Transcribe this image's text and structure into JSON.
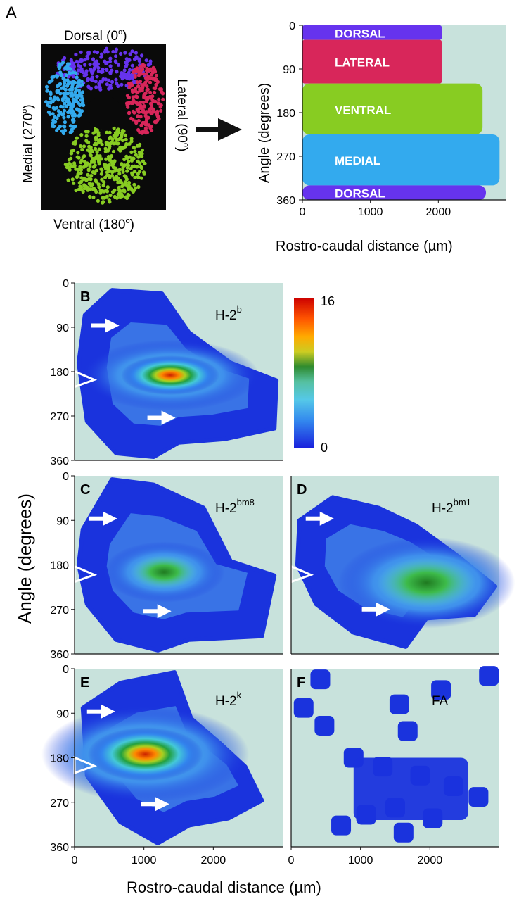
{
  "panel_a": {
    "letter": "A",
    "schematic": {
      "top_label": "Dorsal (0",
      "top_sup": "o",
      "top_end": ")",
      "bottom_label": "Ventral (180",
      "bottom_sup": "o",
      "bottom_end": ")",
      "left_label": "Medial (270",
      "left_sup": "o",
      "left_end": ")",
      "right_label": "Lateral (90",
      "right_sup": "o",
      "right_end": ")"
    },
    "chart": {
      "band_labels": [
        "DORSAL",
        "LATERAL",
        "VENTRAL",
        "MEDIAL",
        "DORSAL"
      ],
      "ylabel": "Angle (degrees)",
      "xlabel": "Rostro-caudal distance (µm)",
      "yticks": [
        "0",
        "90",
        "180",
        "270",
        "360"
      ],
      "xticks": [
        "0",
        "1000",
        "2000"
      ]
    }
  },
  "heatmaps": {
    "ylabel": "Angle (degrees)",
    "xlabel": "Rostro-caudal distance (µm)",
    "yticks": [
      "0",
      "90",
      "180",
      "270",
      "360"
    ],
    "xticks": [
      "0",
      "1000",
      "2000"
    ],
    "colorbar": {
      "max_label": "16",
      "min_label": "0"
    },
    "panels": [
      {
        "letter": "B",
        "strain": "H-2",
        "sup": "b"
      },
      {
        "letter": "C",
        "strain": "H-2",
        "sup": "bm8"
      },
      {
        "letter": "D",
        "strain": "H-2",
        "sup": "bm1"
      },
      {
        "letter": "E",
        "strain": "H-2",
        "sup": "k"
      },
      {
        "letter": "F",
        "strain": "FA",
        "sup": ""
      }
    ]
  },
  "chart_data": [
    {
      "type": "area",
      "title": "",
      "xlabel": "Rostro-caudal distance (µm)",
      "ylabel": "Angle (degrees)",
      "xlim": [
        0,
        3000
      ],
      "ylim": [
        0,
        360
      ],
      "y_inverted": true,
      "series": [
        {
          "name": "DORSAL",
          "y_range": [
            0,
            30
          ],
          "x_extent": 2050,
          "color": "#6633ee"
        },
        {
          "name": "LATERAL",
          "y_range": [
            30,
            120
          ],
          "x_extent": 2050,
          "color": "#d8265a"
        },
        {
          "name": "VENTRAL",
          "y_range": [
            120,
            225
          ],
          "x_extent": 2650,
          "color": "#88cc22"
        },
        {
          "name": "MEDIAL",
          "y_range": [
            225,
            330
          ],
          "x_extent": 2900,
          "color": "#33aaee"
        },
        {
          "name": "DORSAL",
          "y_range": [
            330,
            360
          ],
          "x_extent": 2700,
          "color": "#6633ee"
        }
      ]
    },
    {
      "type": "heatmap",
      "title": "H-2b",
      "xlabel": "Rostro-caudal distance (µm)",
      "ylabel": "Angle (degrees)",
      "xlim": [
        0,
        3000
      ],
      "ylim": [
        0,
        360
      ],
      "zlim": [
        0,
        16
      ],
      "peaks": [
        {
          "x": 1400,
          "y": 205,
          "value": 12
        }
      ]
    },
    {
      "type": "heatmap",
      "title": "H-2bm8",
      "xlabel": "Rostro-caudal distance (µm)",
      "ylabel": "Angle (degrees)",
      "xlim": [
        0,
        3000
      ],
      "ylim": [
        0,
        360
      ],
      "zlim": [
        0,
        16
      ],
      "peaks": [
        {
          "x": 1450,
          "y": 215,
          "value": 9
        }
      ]
    },
    {
      "type": "heatmap",
      "title": "H-2bm1",
      "xlabel": "Rostro-caudal distance (µm)",
      "ylabel": "Angle (degrees)",
      "xlim": [
        0,
        3000
      ],
      "ylim": [
        0,
        360
      ],
      "zlim": [
        0,
        16
      ],
      "peaks": [
        {
          "x": 2000,
          "y": 240,
          "value": 6
        }
      ]
    },
    {
      "type": "heatmap",
      "title": "H-2k",
      "xlabel": "Rostro-caudal distance (µm)",
      "ylabel": "Angle (degrees)",
      "xlim": [
        0,
        3000
      ],
      "ylim": [
        0,
        360
      ],
      "zlim": [
        0,
        16
      ],
      "peaks": [
        {
          "x": 1050,
          "y": 180,
          "value": 16
        }
      ]
    },
    {
      "type": "heatmap",
      "title": "FA",
      "xlabel": "Rostro-caudal distance (µm)",
      "ylabel": "Angle (degrees)",
      "xlim": [
        0,
        3000
      ],
      "ylim": [
        0,
        360
      ],
      "zlim": [
        0,
        16
      ],
      "peaks": [
        {
          "x": 1500,
          "y": 220,
          "value": 2
        }
      ]
    }
  ],
  "colors": {
    "dorsal": "#6633ee",
    "lateral": "#d8265a",
    "ventral": "#88cc22",
    "medial": "#33aaee",
    "plot_bg": "#c8e2dc",
    "heat_low": "#1a33dd"
  }
}
